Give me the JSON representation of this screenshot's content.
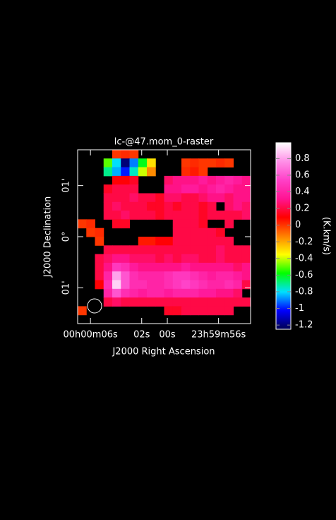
{
  "chart_data": {
    "type": "heatmap",
    "title": "lc-@47.mom_0-raster",
    "x_label": "J2000 Right Ascension",
    "y_label": "J2000 Declination",
    "colorbar_label": "(K.km/s)",
    "xlim": [
      7,
      -6.5
    ],
    "xticks": [
      {
        "value": 6,
        "label": "00h00m06s"
      },
      {
        "value": 2,
        "label": "02s"
      },
      {
        "value": 0,
        "label": "00s"
      },
      {
        "value": -4,
        "label": "23h59m56s"
      }
    ],
    "ylim": [
      -1.7,
      1.7
    ],
    "yticks": [
      {
        "value": 1,
        "label": "01'"
      },
      {
        "value": 0,
        "label": "0°"
      },
      {
        "value": -1,
        "label": "01'"
      }
    ],
    "clim": [
      -1.25,
      0.99
    ],
    "cticks": [
      0.8,
      0.6,
      0.4,
      0.2,
      0,
      -0.2,
      -0.4,
      -0.6,
      -0.8,
      -1,
      -1.2
    ],
    "colormap": [
      "#000050",
      "#0000ff",
      "#00e0ff",
      "#00ff00",
      "#ffff00",
      "#ff8000",
      "#ff0000",
      "#ff1493",
      "#ff40c8",
      "#ff90e8",
      "#ffffff"
    ],
    "values": [
      [
        null,
        null,
        null,
        null,
        0,
        0.02,
        0,
        null,
        null,
        null,
        null,
        null,
        null,
        null,
        null,
        null,
        null,
        null,
        null,
        null
      ],
      [
        null,
        null,
        null,
        -0.5,
        -0.8,
        -1.2,
        -0.9,
        -0.6,
        -0.3,
        null,
        null,
        null,
        0,
        0.02,
        0,
        0,
        0.02,
        0,
        null,
        null
      ],
      [
        null,
        null,
        null,
        -0.7,
        -0.85,
        -1.0,
        -0.75,
        -0.4,
        -0.15,
        null,
        null,
        null,
        0.02,
        0.05,
        0,
        null,
        null,
        null,
        null,
        null
      ],
      [
        null,
        null,
        null,
        null,
        0.1,
        0.1,
        0.15,
        null,
        null,
        null,
        0.25,
        0.3,
        0.3,
        0.3,
        0.35,
        0.3,
        0.35,
        0.4,
        0.35,
        0.3
      ],
      [
        null,
        null,
        null,
        0.15,
        0.2,
        0.2,
        0.2,
        null,
        null,
        null,
        0.3,
        0.3,
        0.35,
        0.35,
        0.3,
        0.35,
        0.4,
        0.35,
        0.3,
        0.3
      ],
      [
        null,
        null,
        null,
        0.2,
        0.2,
        0.2,
        0.25,
        0.2,
        0.2,
        0.15,
        0.25,
        0.25,
        0.2,
        0.2,
        0.25,
        0.3,
        0.3,
        0.25,
        0.3,
        0.3
      ],
      [
        null,
        null,
        null,
        0.2,
        0.25,
        0.2,
        0.2,
        0.2,
        0.15,
        0.15,
        0.2,
        0.15,
        0.2,
        0.2,
        0.15,
        0.2,
        null,
        0.25,
        0.3,
        0.25
      ],
      [
        null,
        null,
        null,
        0.2,
        0.2,
        0.25,
        0.2,
        0.2,
        0.2,
        0.15,
        0.2,
        0.2,
        0.2,
        0.2,
        0.15,
        0.2,
        0.2,
        0.2,
        0.2,
        0.25
      ],
      [
        0,
        0.02,
        null,
        null,
        0.15,
        0.15,
        null,
        null,
        null,
        null,
        null,
        0.2,
        0.2,
        0.2,
        0.15,
        null,
        null,
        0.2,
        null,
        null
      ],
      [
        null,
        0,
        0.02,
        null,
        null,
        null,
        null,
        null,
        null,
        null,
        null,
        0.2,
        0.2,
        0.2,
        0.2,
        0.2,
        0.15,
        null,
        null,
        null
      ],
      [
        null,
        null,
        0,
        null,
        null,
        null,
        null,
        0.05,
        0.05,
        0.1,
        0.1,
        0.2,
        0.2,
        0.2,
        0.2,
        0.2,
        0.2,
        0.2,
        null,
        null
      ],
      [
        null,
        null,
        null,
        0.2,
        0.2,
        0.2,
        0.2,
        0.2,
        0.2,
        0.2,
        0.2,
        0.2,
        0.2,
        0.2,
        0.2,
        0.2,
        0.25,
        0.2,
        0.2,
        0.2
      ],
      [
        null,
        null,
        0.2,
        0.25,
        0.3,
        0.3,
        0.25,
        0.25,
        0.25,
        0.2,
        0.25,
        0.2,
        0.25,
        0.25,
        0.2,
        0.2,
        0.25,
        0.2,
        0.2,
        0.2
      ],
      [
        null,
        null,
        0.2,
        0.3,
        0.5,
        0.45,
        0.35,
        0.3,
        0.3,
        0.3,
        0.3,
        0.3,
        0.35,
        0.3,
        0.3,
        0.3,
        0.3,
        0.3,
        0.25,
        0.3
      ],
      [
        null,
        null,
        0.2,
        0.4,
        0.8,
        0.6,
        0.45,
        0.4,
        0.4,
        0.4,
        0.45,
        0.5,
        0.5,
        0.45,
        0.4,
        0.35,
        0.4,
        0.4,
        0.35,
        0.3
      ],
      [
        null,
        null,
        0.1,
        0.45,
        0.9,
        0.6,
        0.45,
        0.45,
        0.4,
        0.4,
        0.45,
        0.5,
        0.55,
        0.5,
        0.45,
        0.4,
        0.4,
        0.45,
        0.4,
        0.2
      ],
      [
        null,
        null,
        null,
        0.4,
        0.6,
        0.45,
        0.4,
        0.35,
        0.4,
        0.4,
        0.35,
        0.4,
        0.4,
        0.4,
        0.35,
        0.35,
        0.3,
        0.3,
        0.25,
        null
      ],
      [
        null,
        null,
        null,
        0.2,
        0.25,
        0.2,
        0.2,
        0.2,
        0.2,
        0.2,
        0.2,
        0.2,
        0.2,
        0.2,
        0.2,
        0.2,
        0.2,
        0.2,
        0.2,
        0.2
      ],
      [
        0,
        null,
        null,
        null,
        null,
        null,
        null,
        null,
        null,
        null,
        0.15,
        0.15,
        0.2,
        0.2,
        0.2,
        0.2,
        0.2,
        0.2,
        null,
        null
      ],
      [
        null,
        null,
        null,
        null,
        null,
        null,
        null,
        null,
        null,
        null,
        null,
        null,
        null,
        null,
        null,
        null,
        null,
        null,
        null,
        null
      ]
    ]
  }
}
